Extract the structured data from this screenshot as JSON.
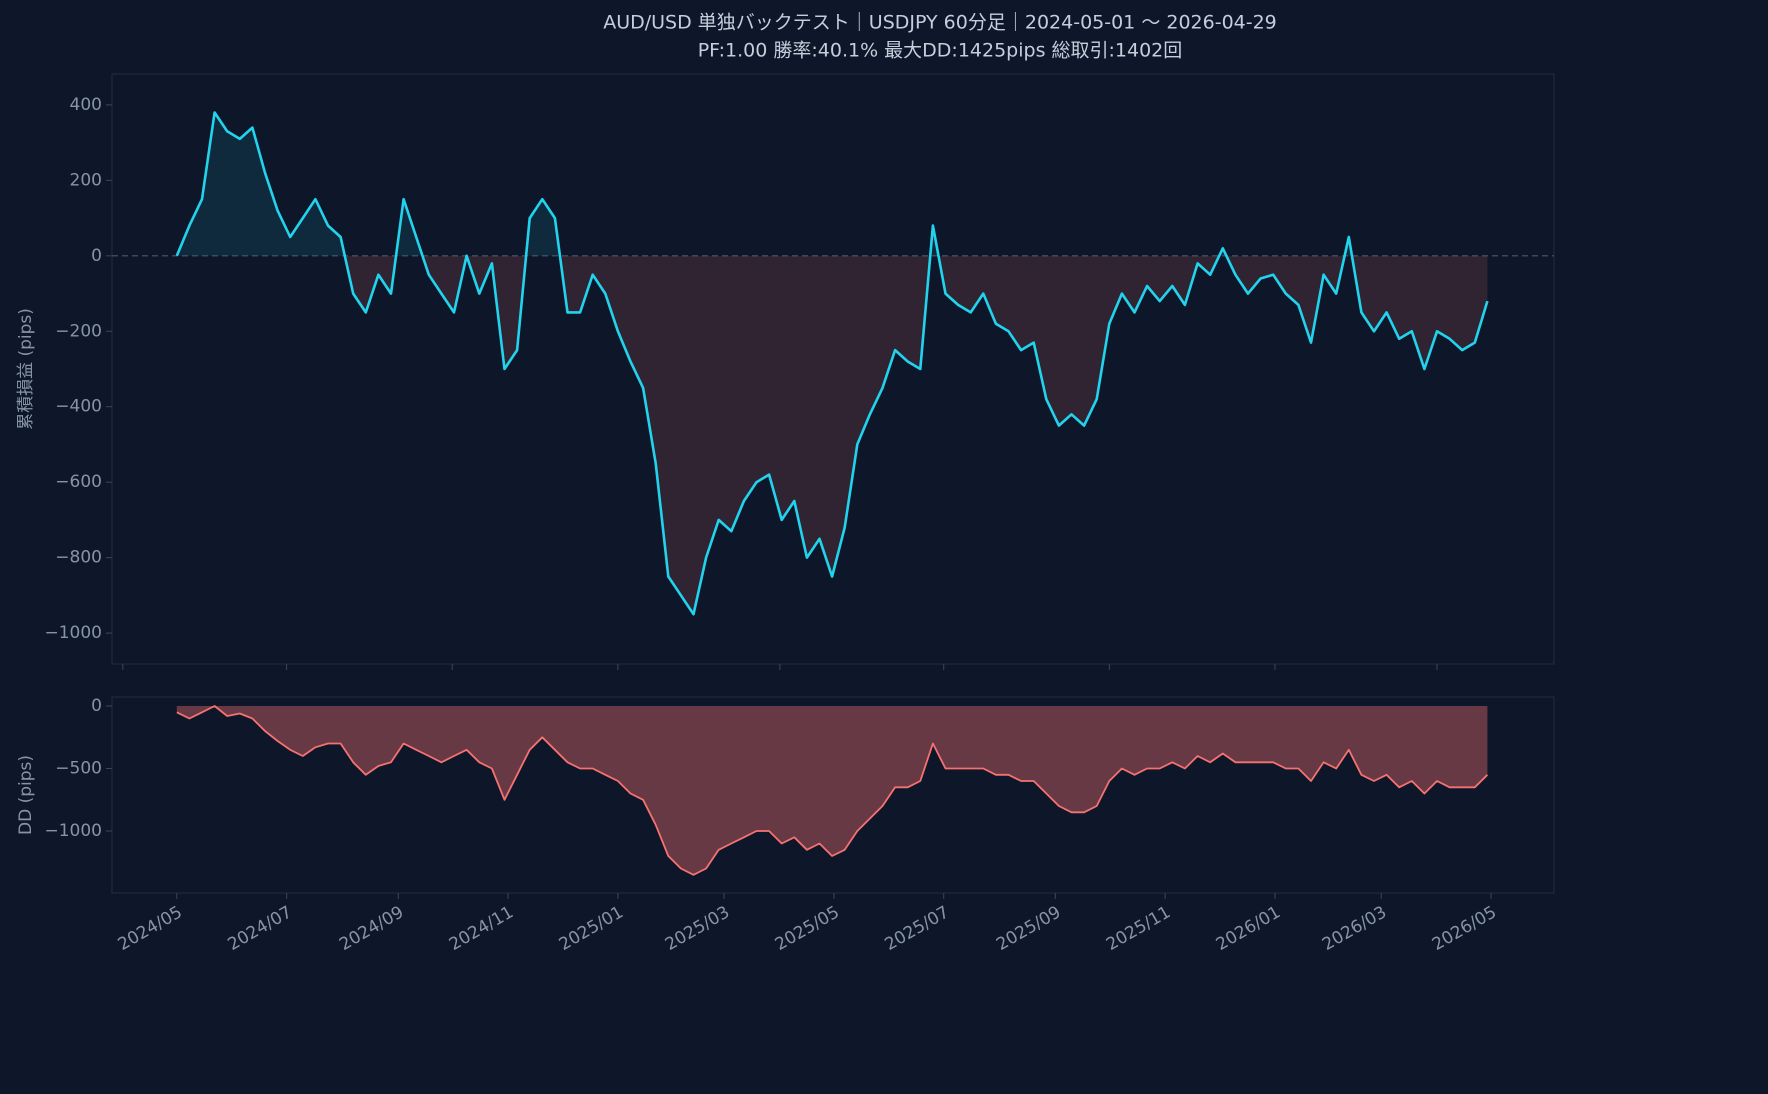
{
  "chart_data": [
    {
      "type": "line",
      "title": "AUD/USD 単独バックテスト｜USDJPY 60分足｜2024-05-01 〜 2026-04-29",
      "subtitle": "PF:1.00  勝率:40.1%  最大DD:1425pips  総取引:1402回",
      "ylabel": "累積損益 (pips)",
      "color": "#22d3ee",
      "fill_above_color": "#22d3ee",
      "fill_below_color": "#f87171",
      "hline": 0,
      "x": [
        "2024-05-01",
        "2024-05-08",
        "2024-05-15",
        "2024-05-22",
        "2024-05-29",
        "2024-06-05",
        "2024-06-12",
        "2024-06-19",
        "2024-06-26",
        "2024-07-03",
        "2024-07-10",
        "2024-07-17",
        "2024-07-24",
        "2024-07-31",
        "2024-08-07",
        "2024-08-14",
        "2024-08-21",
        "2024-08-28",
        "2024-09-04",
        "2024-09-11",
        "2024-09-18",
        "2024-09-25",
        "2024-10-02",
        "2024-10-09",
        "2024-10-16",
        "2024-10-23",
        "2024-10-30",
        "2024-11-06",
        "2024-11-13",
        "2024-11-20",
        "2024-11-27",
        "2024-12-04",
        "2024-12-11",
        "2024-12-18",
        "2024-12-25",
        "2025-01-01",
        "2025-01-08",
        "2025-01-15",
        "2025-01-22",
        "2025-01-29",
        "2025-02-05",
        "2025-02-12",
        "2025-02-19",
        "2025-02-26",
        "2025-03-05",
        "2025-03-12",
        "2025-03-19",
        "2025-03-26",
        "2025-04-02",
        "2025-04-09",
        "2025-04-16",
        "2025-04-23",
        "2025-04-30",
        "2025-05-07",
        "2025-05-14",
        "2025-05-21",
        "2025-05-28",
        "2025-06-04",
        "2025-06-11",
        "2025-06-18",
        "2025-06-25",
        "2025-07-02",
        "2025-07-09",
        "2025-07-16",
        "2025-07-23",
        "2025-07-30",
        "2025-08-06",
        "2025-08-13",
        "2025-08-20",
        "2025-08-27",
        "2025-09-03",
        "2025-09-10",
        "2025-09-17",
        "2025-09-24",
        "2025-10-01",
        "2025-10-08",
        "2025-10-15",
        "2025-10-22",
        "2025-10-29",
        "2025-11-05",
        "2025-11-12",
        "2025-11-19",
        "2025-11-26",
        "2025-12-03",
        "2025-12-10",
        "2025-12-17",
        "2025-12-24",
        "2025-12-31",
        "2026-01-07",
        "2026-01-14",
        "2026-01-21",
        "2026-01-28",
        "2026-02-04",
        "2026-02-11",
        "2026-02-18",
        "2026-02-25",
        "2026-03-04",
        "2026-03-11",
        "2026-03-18",
        "2026-03-25",
        "2026-04-01",
        "2026-04-08",
        "2026-04-15",
        "2026-04-22",
        "2026-04-29"
      ],
      "values": [
        0,
        80,
        150,
        380,
        330,
        310,
        340,
        220,
        120,
        50,
        100,
        150,
        80,
        50,
        -100,
        -150,
        -50,
        -100,
        150,
        50,
        -50,
        -100,
        -150,
        0,
        -100,
        -20,
        -300,
        -250,
        100,
        150,
        100,
        -150,
        -150,
        -50,
        -100,
        -200,
        -280,
        -350,
        -550,
        -850,
        -900,
        -950,
        -800,
        -700,
        -730,
        -650,
        -600,
        -580,
        -700,
        -650,
        -800,
        -750,
        -850,
        -720,
        -500,
        -420,
        -350,
        -250,
        -280,
        -300,
        80,
        -100,
        -130,
        -150,
        -100,
        -180,
        -200,
        -250,
        -230,
        -380,
        -450,
        -420,
        -450,
        -380,
        -180,
        -100,
        -150,
        -80,
        -120,
        -80,
        -130,
        -20,
        -50,
        20,
        -50,
        -100,
        -60,
        -50,
        -100,
        -130,
        -230,
        -50,
        -100,
        50,
        -150,
        -200,
        -150,
        -220,
        -200,
        -300,
        -200,
        -220,
        -250,
        -230,
        -120
      ],
      "xlim": [
        "2024-03-26",
        "2026-06-05"
      ],
      "xticks": [
        "2024-04-01",
        "2024-07-01",
        "2024-10-01",
        "2025-01-01",
        "2025-04-01",
        "2025-07-01",
        "2025-10-01",
        "2026-01-01",
        "2026-04-01"
      ],
      "ylim": [
        -1082,
        482
      ],
      "yticks": [
        {
          "value": -1000,
          "label": "−1000"
        },
        {
          "value": -800,
          "label": "−800"
        },
        {
          "value": -600,
          "label": "−600"
        },
        {
          "value": -400,
          "label": "−400"
        },
        {
          "value": -200,
          "label": "−200"
        },
        0,
        200,
        400
      ]
    },
    {
      "type": "area",
      "ylabel": "DD (pips)",
      "color": "#f87171",
      "x": [
        "2024-05-01",
        "2024-05-08",
        "2024-05-15",
        "2024-05-22",
        "2024-05-29",
        "2024-06-05",
        "2024-06-12",
        "2024-06-19",
        "2024-06-26",
        "2024-07-03",
        "2024-07-10",
        "2024-07-17",
        "2024-07-24",
        "2024-07-31",
        "2024-08-07",
        "2024-08-14",
        "2024-08-21",
        "2024-08-28",
        "2024-09-04",
        "2024-09-11",
        "2024-09-18",
        "2024-09-25",
        "2024-10-02",
        "2024-10-09",
        "2024-10-16",
        "2024-10-23",
        "2024-10-30",
        "2024-11-06",
        "2024-11-13",
        "2024-11-20",
        "2024-11-27",
        "2024-12-04",
        "2024-12-11",
        "2024-12-18",
        "2024-12-25",
        "2025-01-01",
        "2025-01-08",
        "2025-01-15",
        "2025-01-22",
        "2025-01-29",
        "2025-02-05",
        "2025-02-12",
        "2025-02-19",
        "2025-02-26",
        "2025-03-05",
        "2025-03-12",
        "2025-03-19",
        "2025-03-26",
        "2025-04-02",
        "2025-04-09",
        "2025-04-16",
        "2025-04-23",
        "2025-04-30",
        "2025-05-07",
        "2025-05-14",
        "2025-05-21",
        "2025-05-28",
        "2025-06-04",
        "2025-06-11",
        "2025-06-18",
        "2025-06-25",
        "2025-07-02",
        "2025-07-09",
        "2025-07-16",
        "2025-07-23",
        "2025-07-30",
        "2025-08-06",
        "2025-08-13",
        "2025-08-20",
        "2025-08-27",
        "2025-09-03",
        "2025-09-10",
        "2025-09-17",
        "2025-09-24",
        "2025-10-01",
        "2025-10-08",
        "2025-10-15",
        "2025-10-22",
        "2025-10-29",
        "2025-11-05",
        "2025-11-12",
        "2025-11-19",
        "2025-11-26",
        "2025-12-03",
        "2025-12-10",
        "2025-12-17",
        "2025-12-24",
        "2025-12-31",
        "2026-01-07",
        "2026-01-14",
        "2026-01-21",
        "2026-01-28",
        "2026-02-04",
        "2026-02-11",
        "2026-02-18",
        "2026-02-25",
        "2026-03-04",
        "2026-03-11",
        "2026-03-18",
        "2026-03-25",
        "2026-04-01",
        "2026-04-08",
        "2026-04-15",
        "2026-04-22",
        "2026-04-29"
      ],
      "values": [
        -50,
        -100,
        -50,
        0,
        -80,
        -60,
        -100,
        -200,
        -280,
        -350,
        -400,
        -330,
        -300,
        -300,
        -450,
        -550,
        -480,
        -450,
        -300,
        -350,
        -400,
        -450,
        -400,
        -350,
        -450,
        -500,
        -750,
        -550,
        -350,
        -250,
        -350,
        -450,
        -500,
        -500,
        -550,
        -600,
        -700,
        -750,
        -950,
        -1200,
        -1300,
        -1350,
        -1300,
        -1150,
        -1100,
        -1050,
        -1000,
        -1000,
        -1100,
        -1050,
        -1150,
        -1100,
        -1200,
        -1150,
        -1000,
        -900,
        -800,
        -650,
        -650,
        -600,
        -300,
        -500,
        -500,
        -500,
        -500,
        -550,
        -550,
        -600,
        -600,
        -700,
        -800,
        -850,
        -850,
        -800,
        -600,
        -500,
        -550,
        -500,
        -500,
        -450,
        -500,
        -400,
        -450,
        -380,
        -450,
        -450,
        -450,
        -450,
        -500,
        -500,
        -600,
        -450,
        -500,
        -350,
        -550,
        -600,
        -550,
        -650,
        -600,
        -700,
        -600,
        -650,
        -650,
        -650,
        -550
      ],
      "xlim": [
        "2024-03-26",
        "2026-06-05"
      ],
      "xticks": [
        {
          "value": "2024-05-01",
          "label": "2024/05"
        },
        {
          "value": "2024-07-01",
          "label": "2024/07"
        },
        {
          "value": "2024-09-01",
          "label": "2024/09"
        },
        {
          "value": "2024-11-01",
          "label": "2024/11"
        },
        {
          "value": "2025-01-01",
          "label": "2025/01"
        },
        {
          "value": "2025-03-01",
          "label": "2025/03"
        },
        {
          "value": "2025-05-01",
          "label": "2025/05"
        },
        {
          "value": "2025-07-01",
          "label": "2025/07"
        },
        {
          "value": "2025-09-01",
          "label": "2025/09"
        },
        {
          "value": "2025-11-01",
          "label": "2025/11"
        },
        {
          "value": "2026-01-01",
          "label": "2026/01"
        },
        {
          "value": "2026-03-01",
          "label": "2026/03"
        },
        {
          "value": "2026-05-01",
          "label": "2026/05"
        }
      ],
      "ylim": [
        -1496,
        72
      ],
      "yticks": [
        {
          "value": -1000,
          "label": "−1000"
        },
        {
          "value": -500,
          "label": "−500"
        },
        0
      ]
    }
  ]
}
